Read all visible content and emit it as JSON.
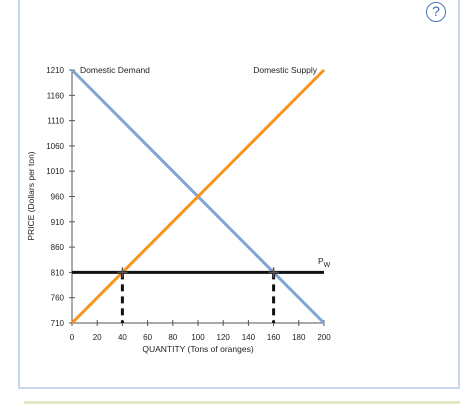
{
  "help_button": {
    "label": "?"
  },
  "chart_data": {
    "type": "line",
    "xlabel": "QUANTITY (Tons of oranges)",
    "ylabel": "PRICE (Dollars per ton)",
    "xlim": [
      0,
      200
    ],
    "ylim": [
      710,
      1210
    ],
    "x_ticks": [
      0,
      20,
      40,
      60,
      80,
      100,
      120,
      140,
      160,
      180,
      200
    ],
    "y_ticks": [
      710,
      760,
      810,
      860,
      910,
      960,
      1010,
      1060,
      1110,
      1160,
      1210
    ],
    "grid": false,
    "series": [
      {
        "name": "Domestic Demand",
        "color": "#7ea6d4",
        "x": [
          0,
          200
        ],
        "y": [
          1210,
          710
        ]
      },
      {
        "name": "Domestic Supply",
        "color": "#f7941d",
        "x": [
          0,
          200
        ],
        "y": [
          710,
          1210
        ]
      }
    ],
    "world_price": {
      "label": "P",
      "subscript": "W",
      "value": 810,
      "color": "#111111"
    },
    "drop_lines": [
      {
        "x": 40,
        "y": 810
      },
      {
        "x": 160,
        "y": 810
      }
    ]
  }
}
